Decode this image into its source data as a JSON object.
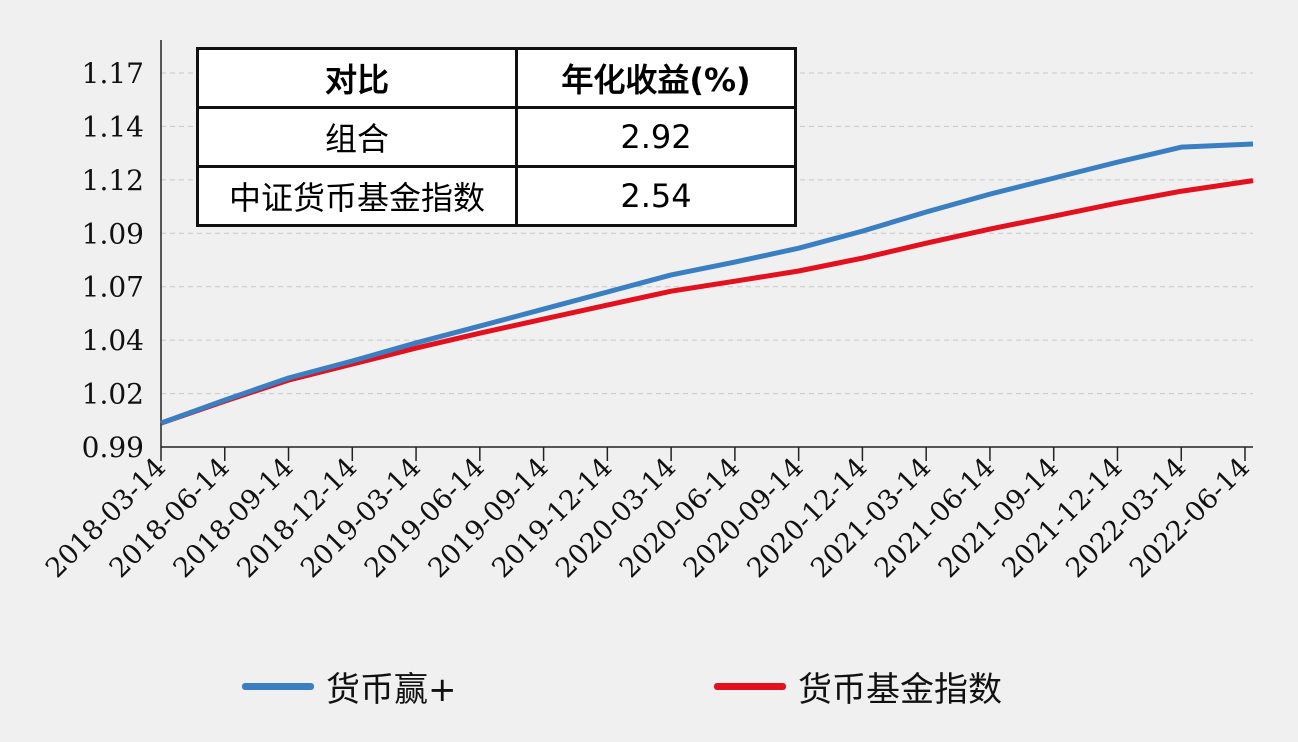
{
  "chart_data": {
    "type": "line",
    "title": "",
    "xlabel": "",
    "ylabel": "",
    "ylim": [
      0.99,
      1.17
    ],
    "yticks": [
      "0.99",
      "1.02",
      "1.04",
      "1.07",
      "1.09",
      "1.12",
      "1.14",
      "1.17"
    ],
    "x": [
      "2018-03-14",
      "2018-06-14",
      "2018-09-14",
      "2018-12-14",
      "2019-03-14",
      "2019-06-14",
      "2019-09-14",
      "2019-12-14",
      "2020-03-14",
      "2020-06-14",
      "2020-09-14",
      "2020-12-14",
      "2021-03-14",
      "2021-06-14",
      "2021-09-14",
      "2021-12-14",
      "2022-03-14",
      "2022-06-14"
    ],
    "grid": "horizontal dashed",
    "legend_position": "bottom",
    "series": [
      {
        "name": "货币赢+",
        "color": "#3a7fc1",
        "values": [
          1.0015,
          1.0126,
          1.0232,
          1.0314,
          1.0401,
          1.0482,
          1.0564,
          1.0646,
          1.0728,
          1.079,
          1.0857,
          1.0939,
          1.1031,
          1.1117,
          1.1194,
          1.1271,
          1.1343,
          1.1358
        ]
      },
      {
        "name": "货币基金指数",
        "color": "#e3101e",
        "values": [
          1.0015,
          1.0121,
          1.0222,
          1.0299,
          1.0376,
          1.0448,
          1.0516,
          1.0583,
          1.065,
          1.0698,
          1.0747,
          1.0809,
          1.0881,
          1.0949,
          1.1011,
          1.1074,
          1.1131,
          1.1182
        ]
      }
    ]
  },
  "table": {
    "headers": [
      "对比",
      "年化收益(%)"
    ],
    "rows": [
      [
        "组合",
        "2.92"
      ],
      [
        "中证货币基金指数",
        "2.54"
      ]
    ]
  }
}
